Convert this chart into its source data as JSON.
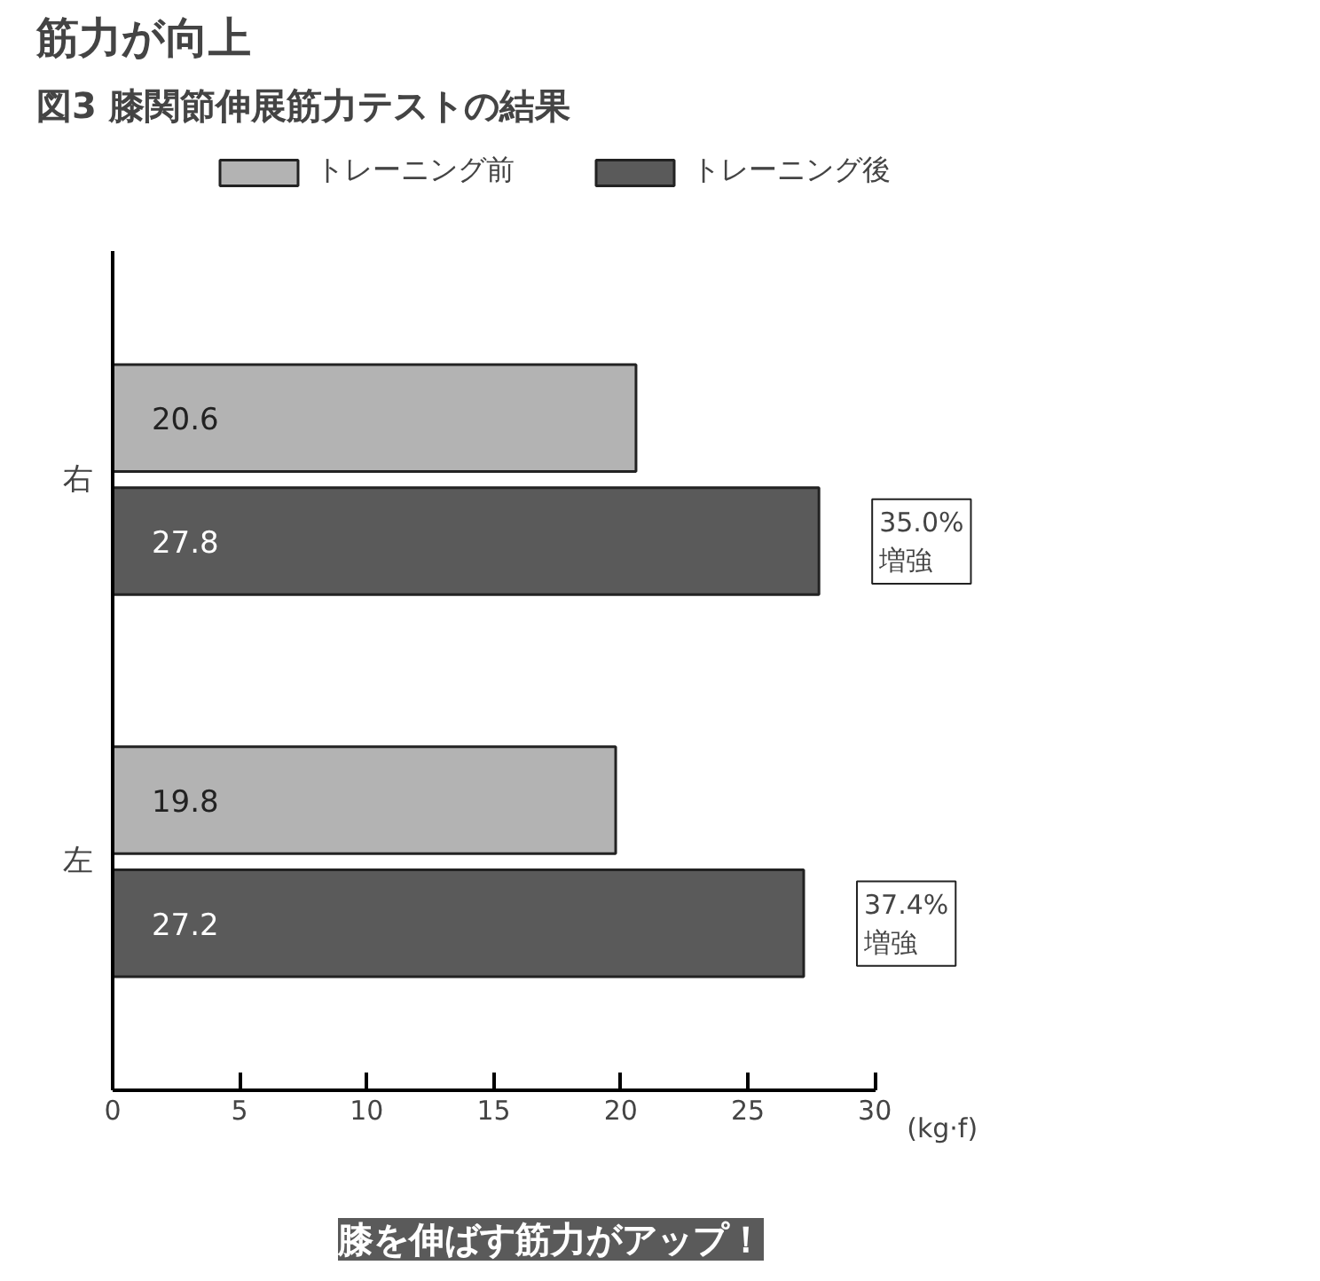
{
  "chart_data": {
    "type": "bar",
    "orientation": "horizontal",
    "title": "筋力が向上",
    "subtitle": "図3 膝関節伸展筋力テストの結果",
    "xlabel": "(kg·f)",
    "categories": [
      "右",
      "左"
    ],
    "series": [
      {
        "name": "トレーニング前",
        "color": "#b3b3b3",
        "values": [
          20.6,
          19.8
        ]
      },
      {
        "name": "トレーニング後",
        "color": "#5a5a5a",
        "values": [
          27.8,
          27.2
        ]
      }
    ],
    "xlim": [
      0,
      30
    ],
    "xticks": [
      0,
      5,
      10,
      15,
      20,
      25,
      30
    ],
    "data_labels": true,
    "legend": "top",
    "grid": false,
    "annotations": [
      {
        "text": "35.0%\n増強",
        "x": 27.8,
        "y": "右"
      },
      {
        "text": "37.4%\n増強",
        "x": 27.2,
        "y": "左"
      },
      "膝を伸ばす筋力がアップ！"
    ]
  }
}
